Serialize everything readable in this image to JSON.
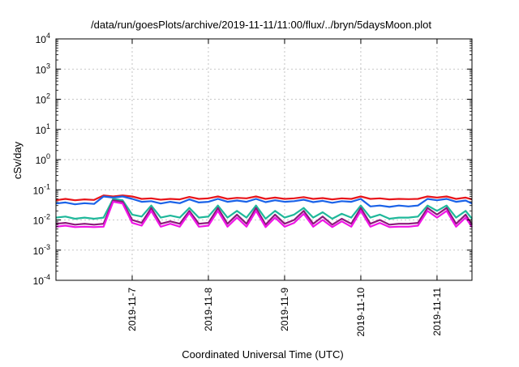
{
  "chart_data": {
    "type": "line",
    "title": "/data/run/goesPlots/archive/2019-11-11/11:00/flux/../bryn/5daysMoon.plot",
    "xlabel": "Coordinated Universal Time (UTC)",
    "ylabel": "cSv/day",
    "y_scale": "log",
    "ylim": [
      0.0001,
      10000
    ],
    "xlim": [
      "2019-11-06 00:00",
      "2019-11-11 11:00"
    ],
    "grid": true,
    "legend": "none",
    "x_ticks": [
      "2019-11-7",
      "2019-11-8",
      "2019-11-9",
      "2019-11-10",
      "2019-11-11"
    ],
    "y_ticks": [
      {
        "value": 0.0001,
        "base": "10",
        "exp": "-4"
      },
      {
        "value": 0.001,
        "base": "10",
        "exp": "-3"
      },
      {
        "value": 0.01,
        "base": "10",
        "exp": "-2"
      },
      {
        "value": 0.1,
        "base": "10",
        "exp": "-1"
      },
      {
        "value": 1,
        "base": "10",
        "exp": "0"
      },
      {
        "value": 10,
        "base": "10",
        "exp": "1"
      },
      {
        "value": 100,
        "base": "10",
        "exp": "2"
      },
      {
        "value": 1000,
        "base": "10",
        "exp": "3"
      },
      {
        "value": 10000,
        "base": "10",
        "exp": "4"
      }
    ],
    "series": [
      {
        "color": "#e8151b",
        "points": [
          [
            "2019-11-06 00:00",
            0.045
          ],
          [
            "2019-11-06 03:00",
            0.05
          ],
          [
            "2019-11-06 06:00",
            0.045
          ],
          [
            "2019-11-06 09:00",
            0.048
          ],
          [
            "2019-11-06 12:00",
            0.046
          ],
          [
            "2019-11-06 15:00",
            0.065
          ],
          [
            "2019-11-06 18:00",
            0.06
          ],
          [
            "2019-11-06 21:00",
            0.065
          ],
          [
            "2019-11-07 00:00",
            0.06
          ],
          [
            "2019-11-07 03:00",
            0.05
          ],
          [
            "2019-11-07 06:00",
            0.052
          ],
          [
            "2019-11-07 09:00",
            0.047
          ],
          [
            "2019-11-07 12:00",
            0.05
          ],
          [
            "2019-11-07 15:00",
            0.048
          ],
          [
            "2019-11-07 18:00",
            0.058
          ],
          [
            "2019-11-07 21:00",
            0.05
          ],
          [
            "2019-11-08 00:00",
            0.052
          ],
          [
            "2019-11-08 03:00",
            0.06
          ],
          [
            "2019-11-08 06:00",
            0.05
          ],
          [
            "2019-11-08 09:00",
            0.054
          ],
          [
            "2019-11-08 12:00",
            0.052
          ],
          [
            "2019-11-08 15:00",
            0.06
          ],
          [
            "2019-11-08 18:00",
            0.05
          ],
          [
            "2019-11-08 21:00",
            0.055
          ],
          [
            "2019-11-09 00:00",
            0.05
          ],
          [
            "2019-11-09 03:00",
            0.052
          ],
          [
            "2019-11-09 06:00",
            0.057
          ],
          [
            "2019-11-09 09:00",
            0.05
          ],
          [
            "2019-11-09 12:00",
            0.053
          ],
          [
            "2019-11-09 15:00",
            0.048
          ],
          [
            "2019-11-09 18:00",
            0.052
          ],
          [
            "2019-11-09 21:00",
            0.05
          ],
          [
            "2019-11-10 00:00",
            0.06
          ],
          [
            "2019-11-10 03:00",
            0.05
          ],
          [
            "2019-11-10 06:00",
            0.052
          ],
          [
            "2019-11-10 09:00",
            0.048
          ],
          [
            "2019-11-10 12:00",
            0.05
          ],
          [
            "2019-11-10 15:00",
            0.049
          ],
          [
            "2019-11-10 18:00",
            0.05
          ],
          [
            "2019-11-10 21:00",
            0.06
          ],
          [
            "2019-11-11 00:00",
            0.055
          ],
          [
            "2019-11-11 03:00",
            0.06
          ],
          [
            "2019-11-11 06:00",
            0.05
          ],
          [
            "2019-11-11 09:00",
            0.055
          ],
          [
            "2019-11-11 11:00",
            0.048
          ]
        ]
      },
      {
        "color": "#1a62e8",
        "points": [
          [
            "2019-11-06 00:00",
            0.035
          ],
          [
            "2019-11-06 03:00",
            0.038
          ],
          [
            "2019-11-06 06:00",
            0.033
          ],
          [
            "2019-11-06 09:00",
            0.036
          ],
          [
            "2019-11-06 12:00",
            0.034
          ],
          [
            "2019-11-06 15:00",
            0.06
          ],
          [
            "2019-11-06 18:00",
            0.055
          ],
          [
            "2019-11-06 21:00",
            0.06
          ],
          [
            "2019-11-07 00:00",
            0.05
          ],
          [
            "2019-11-07 03:00",
            0.04
          ],
          [
            "2019-11-07 06:00",
            0.042
          ],
          [
            "2019-11-07 09:00",
            0.035
          ],
          [
            "2019-11-07 12:00",
            0.04
          ],
          [
            "2019-11-07 15:00",
            0.036
          ],
          [
            "2019-11-07 18:00",
            0.048
          ],
          [
            "2019-11-07 21:00",
            0.038
          ],
          [
            "2019-11-08 00:00",
            0.04
          ],
          [
            "2019-11-08 03:00",
            0.05
          ],
          [
            "2019-11-08 06:00",
            0.04
          ],
          [
            "2019-11-08 09:00",
            0.044
          ],
          [
            "2019-11-08 12:00",
            0.04
          ],
          [
            "2019-11-08 15:00",
            0.05
          ],
          [
            "2019-11-08 18:00",
            0.039
          ],
          [
            "2019-11-08 21:00",
            0.045
          ],
          [
            "2019-11-09 00:00",
            0.04
          ],
          [
            "2019-11-09 03:00",
            0.042
          ],
          [
            "2019-11-09 06:00",
            0.047
          ],
          [
            "2019-11-09 09:00",
            0.039
          ],
          [
            "2019-11-09 12:00",
            0.043
          ],
          [
            "2019-11-09 15:00",
            0.037
          ],
          [
            "2019-11-09 18:00",
            0.042
          ],
          [
            "2019-11-09 21:00",
            0.04
          ],
          [
            "2019-11-10 00:00",
            0.05
          ],
          [
            "2019-11-10 03:00",
            0.028
          ],
          [
            "2019-11-10 06:00",
            0.03
          ],
          [
            "2019-11-10 09:00",
            0.027
          ],
          [
            "2019-11-10 12:00",
            0.03
          ],
          [
            "2019-11-10 15:00",
            0.028
          ],
          [
            "2019-11-10 18:00",
            0.03
          ],
          [
            "2019-11-10 21:00",
            0.05
          ],
          [
            "2019-11-11 00:00",
            0.045
          ],
          [
            "2019-11-11 03:00",
            0.05
          ],
          [
            "2019-11-11 06:00",
            0.04
          ],
          [
            "2019-11-11 09:00",
            0.044
          ],
          [
            "2019-11-11 11:00",
            0.035
          ]
        ]
      },
      {
        "color": "#1fb89a",
        "points": [
          [
            "2019-11-06 00:00",
            0.012
          ],
          [
            "2019-11-06 03:00",
            0.013
          ],
          [
            "2019-11-06 06:00",
            0.011
          ],
          [
            "2019-11-06 09:00",
            0.012
          ],
          [
            "2019-11-06 12:00",
            0.011
          ],
          [
            "2019-11-06 15:00",
            0.012
          ],
          [
            "2019-11-06 18:00",
            0.05
          ],
          [
            "2019-11-06 21:00",
            0.045
          ],
          [
            "2019-11-07 00:00",
            0.015
          ],
          [
            "2019-11-07 03:00",
            0.013
          ],
          [
            "2019-11-07 06:00",
            0.03
          ],
          [
            "2019-11-07 09:00",
            0.012
          ],
          [
            "2019-11-07 12:00",
            0.014
          ],
          [
            "2019-11-07 15:00",
            0.012
          ],
          [
            "2019-11-07 18:00",
            0.025
          ],
          [
            "2019-11-07 21:00",
            0.012
          ],
          [
            "2019-11-08 00:00",
            0.013
          ],
          [
            "2019-11-08 03:00",
            0.03
          ],
          [
            "2019-11-08 06:00",
            0.012
          ],
          [
            "2019-11-08 09:00",
            0.02
          ],
          [
            "2019-11-08 12:00",
            0.012
          ],
          [
            "2019-11-08 15:00",
            0.03
          ],
          [
            "2019-11-08 18:00",
            0.011
          ],
          [
            "2019-11-08 21:00",
            0.02
          ],
          [
            "2019-11-09 00:00",
            0.012
          ],
          [
            "2019-11-09 03:00",
            0.015
          ],
          [
            "2019-11-09 06:00",
            0.025
          ],
          [
            "2019-11-09 09:00",
            0.012
          ],
          [
            "2019-11-09 12:00",
            0.018
          ],
          [
            "2019-11-09 15:00",
            0.011
          ],
          [
            "2019-11-09 18:00",
            0.016
          ],
          [
            "2019-11-09 21:00",
            0.012
          ],
          [
            "2019-11-10 00:00",
            0.03
          ],
          [
            "2019-11-10 03:00",
            0.012
          ],
          [
            "2019-11-10 06:00",
            0.015
          ],
          [
            "2019-11-10 09:00",
            0.011
          ],
          [
            "2019-11-10 12:00",
            0.012
          ],
          [
            "2019-11-10 15:00",
            0.012
          ],
          [
            "2019-11-10 18:00",
            0.013
          ],
          [
            "2019-11-10 21:00",
            0.03
          ],
          [
            "2019-11-11 00:00",
            0.02
          ],
          [
            "2019-11-11 03:00",
            0.03
          ],
          [
            "2019-11-11 06:00",
            0.012
          ],
          [
            "2019-11-11 09:00",
            0.02
          ],
          [
            "2019-11-11 11:00",
            0.011
          ]
        ]
      },
      {
        "color": "#8b1a7a",
        "points": [
          [
            "2019-11-06 00:00",
            0.0075
          ],
          [
            "2019-11-06 03:00",
            0.008
          ],
          [
            "2019-11-06 06:00",
            0.007
          ],
          [
            "2019-11-06 09:00",
            0.0075
          ],
          [
            "2019-11-06 12:00",
            0.007
          ],
          [
            "2019-11-06 15:00",
            0.0075
          ],
          [
            "2019-11-06 18:00",
            0.045
          ],
          [
            "2019-11-06 21:00",
            0.04
          ],
          [
            "2019-11-07 00:00",
            0.01
          ],
          [
            "2019-11-07 03:00",
            0.008
          ],
          [
            "2019-11-07 06:00",
            0.025
          ],
          [
            "2019-11-07 09:00",
            0.0075
          ],
          [
            "2019-11-07 12:00",
            0.009
          ],
          [
            "2019-11-07 15:00",
            0.0075
          ],
          [
            "2019-11-07 18:00",
            0.02
          ],
          [
            "2019-11-07 21:00",
            0.0075
          ],
          [
            "2019-11-08 00:00",
            0.008
          ],
          [
            "2019-11-08 03:00",
            0.025
          ],
          [
            "2019-11-08 06:00",
            0.0075
          ],
          [
            "2019-11-08 09:00",
            0.015
          ],
          [
            "2019-11-08 12:00",
            0.0075
          ],
          [
            "2019-11-08 15:00",
            0.025
          ],
          [
            "2019-11-08 18:00",
            0.007
          ],
          [
            "2019-11-08 21:00",
            0.015
          ],
          [
            "2019-11-09 00:00",
            0.0075
          ],
          [
            "2019-11-09 03:00",
            0.01
          ],
          [
            "2019-11-09 06:00",
            0.02
          ],
          [
            "2019-11-09 09:00",
            0.0075
          ],
          [
            "2019-11-09 12:00",
            0.013
          ],
          [
            "2019-11-09 15:00",
            0.007
          ],
          [
            "2019-11-09 18:00",
            0.011
          ],
          [
            "2019-11-09 21:00",
            0.0075
          ],
          [
            "2019-11-10 00:00",
            0.025
          ],
          [
            "2019-11-10 03:00",
            0.0075
          ],
          [
            "2019-11-10 06:00",
            0.01
          ],
          [
            "2019-11-10 09:00",
            0.007
          ],
          [
            "2019-11-10 12:00",
            0.0075
          ],
          [
            "2019-11-10 15:00",
            0.0075
          ],
          [
            "2019-11-10 18:00",
            0.008
          ],
          [
            "2019-11-10 21:00",
            0.025
          ],
          [
            "2019-11-11 00:00",
            0.015
          ],
          [
            "2019-11-11 03:00",
            0.025
          ],
          [
            "2019-11-11 06:00",
            0.0075
          ],
          [
            "2019-11-11 09:00",
            0.015
          ],
          [
            "2019-11-11 11:00",
            0.007
          ]
        ]
      },
      {
        "color": "#f015e6",
        "points": [
          [
            "2019-11-06 00:00",
            0.006
          ],
          [
            "2019-11-06 03:00",
            0.0065
          ],
          [
            "2019-11-06 06:00",
            0.0058
          ],
          [
            "2019-11-06 09:00",
            0.006
          ],
          [
            "2019-11-06 12:00",
            0.0058
          ],
          [
            "2019-11-06 15:00",
            0.006
          ],
          [
            "2019-11-06 18:00",
            0.04
          ],
          [
            "2019-11-06 21:00",
            0.035
          ],
          [
            "2019-11-07 00:00",
            0.008
          ],
          [
            "2019-11-07 03:00",
            0.0065
          ],
          [
            "2019-11-07 06:00",
            0.02
          ],
          [
            "2019-11-07 09:00",
            0.006
          ],
          [
            "2019-11-07 12:00",
            0.0075
          ],
          [
            "2019-11-07 15:00",
            0.006
          ],
          [
            "2019-11-07 18:00",
            0.017
          ],
          [
            "2019-11-07 21:00",
            0.006
          ],
          [
            "2019-11-08 00:00",
            0.0065
          ],
          [
            "2019-11-08 03:00",
            0.02
          ],
          [
            "2019-11-08 06:00",
            0.006
          ],
          [
            "2019-11-08 09:00",
            0.012
          ],
          [
            "2019-11-08 12:00",
            0.006
          ],
          [
            "2019-11-08 15:00",
            0.02
          ],
          [
            "2019-11-08 18:00",
            0.0058
          ],
          [
            "2019-11-08 21:00",
            0.012
          ],
          [
            "2019-11-09 00:00",
            0.006
          ],
          [
            "2019-11-09 03:00",
            0.008
          ],
          [
            "2019-11-09 06:00",
            0.016
          ],
          [
            "2019-11-09 09:00",
            0.006
          ],
          [
            "2019-11-09 12:00",
            0.01
          ],
          [
            "2019-11-09 15:00",
            0.0058
          ],
          [
            "2019-11-09 18:00",
            0.009
          ],
          [
            "2019-11-09 21:00",
            0.006
          ],
          [
            "2019-11-10 00:00",
            0.02
          ],
          [
            "2019-11-10 03:00",
            0.006
          ],
          [
            "2019-11-10 06:00",
            0.008
          ],
          [
            "2019-11-10 09:00",
            0.0058
          ],
          [
            "2019-11-10 12:00",
            0.006
          ],
          [
            "2019-11-10 15:00",
            0.006
          ],
          [
            "2019-11-10 18:00",
            0.0065
          ],
          [
            "2019-11-10 21:00",
            0.02
          ],
          [
            "2019-11-11 00:00",
            0.012
          ],
          [
            "2019-11-11 03:00",
            0.02
          ],
          [
            "2019-11-11 06:00",
            0.006
          ],
          [
            "2019-11-11 09:00",
            0.012
          ],
          [
            "2019-11-11 11:00",
            0.0058
          ]
        ]
      }
    ]
  }
}
